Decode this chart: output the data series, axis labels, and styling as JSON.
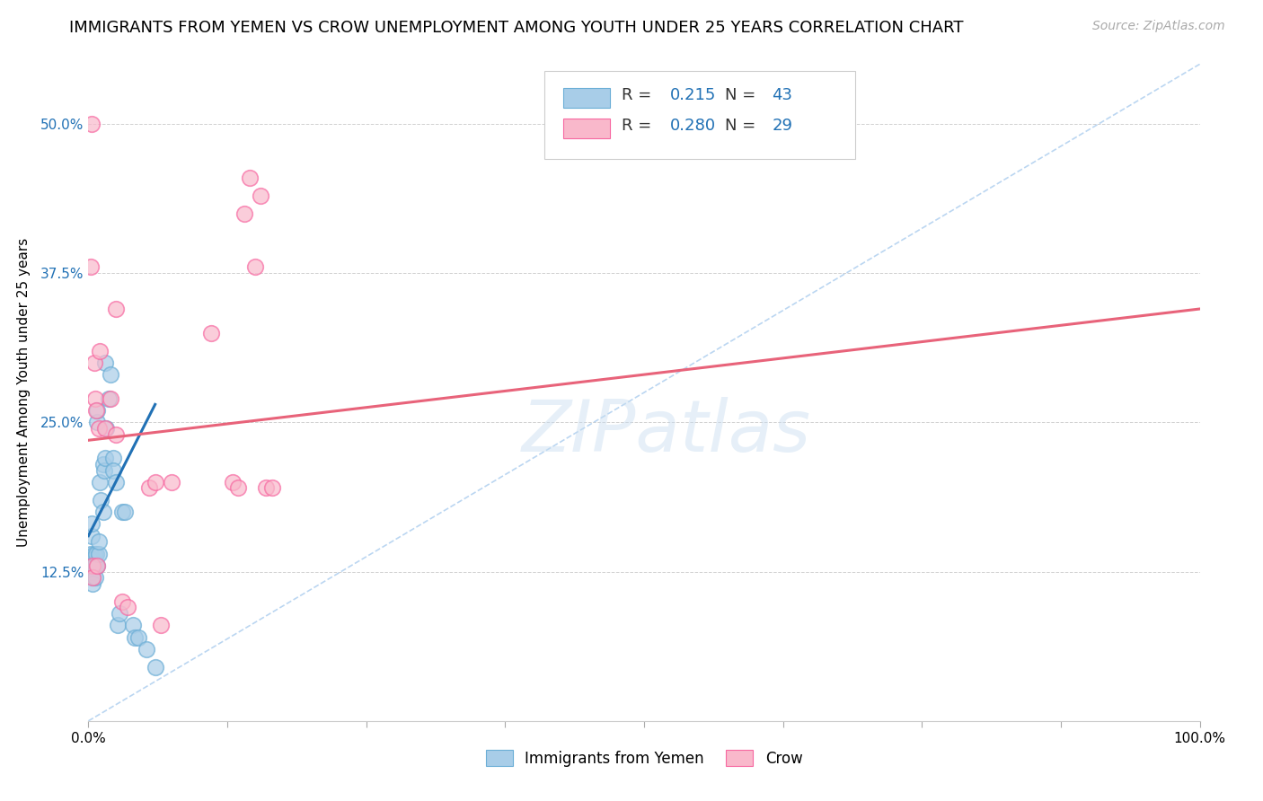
{
  "title": "IMMIGRANTS FROM YEMEN VS CROW UNEMPLOYMENT AMONG YOUTH UNDER 25 YEARS CORRELATION CHART",
  "source": "Source: ZipAtlas.com",
  "ylabel": "Unemployment Among Youth under 25 years",
  "xlim": [
    0,
    1.0
  ],
  "ylim": [
    0,
    0.55
  ],
  "xticks": [
    0.0,
    0.125,
    0.25,
    0.375,
    0.5,
    0.625,
    0.75,
    0.875,
    1.0
  ],
  "xticklabels": [
    "0.0%",
    "",
    "",
    "",
    "",
    "",
    "",
    "",
    "100.0%"
  ],
  "yticks": [
    0.0,
    0.125,
    0.25,
    0.375,
    0.5
  ],
  "yticklabels": [
    "",
    "12.5%",
    "25.0%",
    "37.5%",
    "50.0%"
  ],
  "R_blue": "0.215",
  "N_blue": "43",
  "R_pink": "0.280",
  "N_pink": "29",
  "legend_label_blue": "Immigrants from Yemen",
  "legend_label_pink": "Crow",
  "blue_color": "#a8cde8",
  "pink_color": "#f9b8cb",
  "blue_edge_color": "#6baed6",
  "pink_edge_color": "#f768a1",
  "blue_line_color": "#2171b5",
  "pink_line_color": "#e8637a",
  "dashed_line_color": "#aaccee",
  "background_color": "#ffffff",
  "blue_scatter_x": [
    0.001,
    0.002,
    0.002,
    0.003,
    0.003,
    0.003,
    0.003,
    0.003,
    0.004,
    0.004,
    0.004,
    0.005,
    0.005,
    0.006,
    0.006,
    0.007,
    0.008,
    0.008,
    0.008,
    0.009,
    0.009,
    0.01,
    0.011,
    0.013,
    0.013,
    0.014,
    0.015,
    0.015,
    0.016,
    0.018,
    0.02,
    0.022,
    0.022,
    0.025,
    0.026,
    0.028,
    0.03,
    0.033,
    0.04,
    0.042,
    0.045,
    0.052,
    0.06
  ],
  "blue_scatter_y": [
    0.135,
    0.14,
    0.13,
    0.135,
    0.155,
    0.165,
    0.13,
    0.125,
    0.12,
    0.115,
    0.135,
    0.13,
    0.14,
    0.13,
    0.12,
    0.14,
    0.13,
    0.25,
    0.26,
    0.14,
    0.15,
    0.2,
    0.185,
    0.215,
    0.175,
    0.21,
    0.22,
    0.3,
    0.245,
    0.27,
    0.29,
    0.22,
    0.21,
    0.2,
    0.08,
    0.09,
    0.175,
    0.175,
    0.08,
    0.07,
    0.07,
    0.06,
    0.045
  ],
  "pink_scatter_x": [
    0.002,
    0.003,
    0.004,
    0.004,
    0.005,
    0.006,
    0.007,
    0.008,
    0.009,
    0.01,
    0.015,
    0.02,
    0.025,
    0.025,
    0.03,
    0.035,
    0.055,
    0.06,
    0.065,
    0.075,
    0.11,
    0.13,
    0.135,
    0.14,
    0.145,
    0.15,
    0.155,
    0.16,
    0.165
  ],
  "pink_scatter_y": [
    0.38,
    0.5,
    0.13,
    0.12,
    0.3,
    0.27,
    0.26,
    0.13,
    0.245,
    0.31,
    0.245,
    0.27,
    0.345,
    0.24,
    0.1,
    0.095,
    0.195,
    0.2,
    0.08,
    0.2,
    0.325,
    0.2,
    0.195,
    0.425,
    0.455,
    0.38,
    0.44,
    0.195,
    0.195
  ],
  "blue_line_x": [
    0.0,
    0.06
  ],
  "blue_line_y": [
    0.155,
    0.265
  ],
  "pink_line_x": [
    0.0,
    1.0
  ],
  "pink_line_y": [
    0.235,
    0.345
  ],
  "dashed_line_x": [
    0.0,
    1.0
  ],
  "dashed_line_y": [
    0.0,
    0.55
  ],
  "watermark": "ZIPatlas",
  "title_fontsize": 13,
  "axis_label_fontsize": 11,
  "tick_fontsize": 11,
  "source_fontsize": 10
}
